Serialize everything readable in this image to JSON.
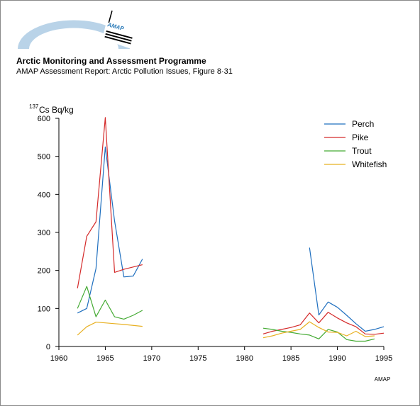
{
  "header": {
    "logo_text": "AMAP",
    "organization": "Arctic Monitoring and Assessment Programme",
    "subtitle": "AMAP Assessment Report: Arctic Pollution Issues, Figure 8·31"
  },
  "chart_data": {
    "type": "line",
    "title": "",
    "ylabel_sup": "137",
    "ylabel": "Cs Bq/kg",
    "xlabel": "",
    "xlim": [
      1960,
      1995
    ],
    "ylim": [
      0,
      600
    ],
    "xticks": [
      1960,
      1965,
      1970,
      1975,
      1980,
      1985,
      1990,
      1995
    ],
    "yticks": [
      0,
      100,
      200,
      300,
      400,
      500,
      600
    ],
    "grid": false,
    "legend_position": "top-right",
    "credit": "AMAP",
    "series": [
      {
        "name": "Perch",
        "color": "#1f6fbf",
        "segments": [
          [
            [
              1962,
              88
            ],
            [
              1963,
              100
            ],
            [
              1964,
              205
            ],
            [
              1965,
              525
            ],
            [
              1966,
              330
            ],
            [
              1967,
              183
            ],
            [
              1968,
              185
            ],
            [
              1969,
              230
            ]
          ],
          [
            [
              1987,
              260
            ],
            [
              1988,
              83
            ],
            [
              1989,
              117
            ],
            [
              1990,
              103
            ],
            [
              1991,
              82
            ],
            [
              1992,
              60
            ],
            [
              1993,
              40
            ],
            [
              1994,
              45
            ],
            [
              1995,
              52
            ]
          ]
        ]
      },
      {
        "name": "Pike",
        "color": "#d42a2a",
        "segments": [
          [
            [
              1962,
              153
            ],
            [
              1963,
              290
            ],
            [
              1964,
              328
            ],
            [
              1965,
              602
            ],
            [
              1966,
              195
            ],
            [
              1967,
              203
            ],
            [
              1969,
              215
            ]
          ],
          [
            [
              1982,
              33
            ],
            [
              1983,
              40
            ],
            [
              1984,
              45
            ],
            [
              1985,
              50
            ],
            [
              1986,
              57
            ],
            [
              1987,
              88
            ],
            [
              1988,
              62
            ],
            [
              1989,
              90
            ],
            [
              1990,
              75
            ],
            [
              1991,
              62
            ],
            [
              1992,
              52
            ],
            [
              1993,
              33
            ],
            [
              1994,
              32
            ],
            [
              1995,
              35
            ]
          ]
        ]
      },
      {
        "name": "Trout",
        "color": "#44aa33",
        "segments": [
          [
            [
              1962,
              100
            ],
            [
              1963,
              158
            ],
            [
              1964,
              78
            ],
            [
              1965,
              122
            ],
            [
              1966,
              78
            ],
            [
              1967,
              72
            ],
            [
              1968,
              82
            ],
            [
              1969,
              95
            ]
          ],
          [
            [
              1982,
              48
            ],
            [
              1983,
              45
            ],
            [
              1984,
              40
            ],
            [
              1985,
              37
            ],
            [
              1986,
              33
            ],
            [
              1987,
              30
            ],
            [
              1988,
              20
            ],
            [
              1989,
              45
            ],
            [
              1990,
              38
            ],
            [
              1991,
              18
            ],
            [
              1992,
              14
            ],
            [
              1993,
              14
            ],
            [
              1994,
              20
            ]
          ]
        ]
      },
      {
        "name": "Whitefish",
        "color": "#e8b021",
        "segments": [
          [
            [
              1962,
              30
            ],
            [
              1963,
              52
            ],
            [
              1964,
              64
            ],
            [
              1965,
              62
            ],
            [
              1966,
              60
            ],
            [
              1967,
              58
            ],
            [
              1969,
              53
            ]
          ],
          [
            [
              1982,
              23
            ],
            [
              1983,
              28
            ],
            [
              1984,
              35
            ],
            [
              1985,
              40
            ],
            [
              1986,
              45
            ],
            [
              1987,
              65
            ],
            [
              1988,
              50
            ],
            [
              1989,
              38
            ],
            [
              1990,
              37
            ],
            [
              1991,
              28
            ],
            [
              1992,
              40
            ],
            [
              1993,
              26
            ],
            [
              1994,
              28
            ]
          ]
        ]
      }
    ]
  }
}
